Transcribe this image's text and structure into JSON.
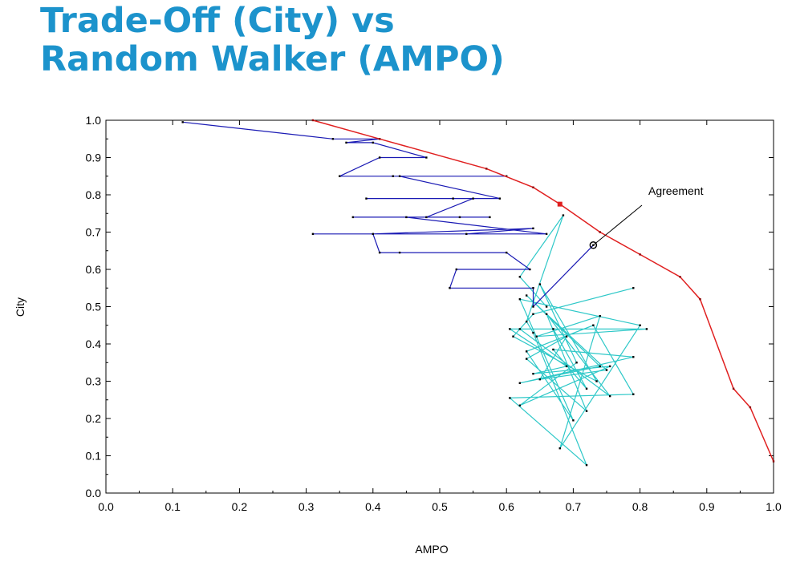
{
  "title": {
    "line1": "Trade-Off (City) vs",
    "line2": "Random Walker (AMPO)"
  },
  "chart_data": {
    "type": "line",
    "xlabel": "AMPO",
    "ylabel": "City",
    "xlim": [
      0,
      1
    ],
    "ylim": [
      0,
      1
    ],
    "xticks": [
      "0.0",
      "0.1",
      "0.2",
      "0.3",
      "0.4",
      "0.5",
      "0.6",
      "0.7",
      "0.8",
      "0.9",
      "1.0"
    ],
    "yticks": [
      "0.0",
      "0.1",
      "0.2",
      "0.3",
      "0.4",
      "0.5",
      "0.6",
      "0.7",
      "0.8",
      "0.9",
      "1.0"
    ],
    "grid": false,
    "annotation": {
      "text": "Agreement",
      "x": 0.73,
      "y": 0.665
    },
    "colors": {
      "frontier": "#e02020",
      "city_walk": "#1a1ab4",
      "ampo_walk": "#2ec8c8",
      "title": "#1c93cc"
    },
    "series": [
      {
        "role": "frontier",
        "x": [
          0.31,
          0.41,
          0.57,
          0.64,
          0.68,
          0.74,
          0.8,
          0.86,
          0.89,
          0.94,
          0.965,
          1.0
        ],
        "y": [
          1.0,
          0.95,
          0.87,
          0.82,
          0.775,
          0.7,
          0.64,
          0.58,
          0.52,
          0.28,
          0.23,
          0.085
        ]
      },
      {
        "role": "city_walk",
        "x": [
          0.115,
          0.34,
          0.41,
          0.36,
          0.4,
          0.48,
          0.41,
          0.35,
          0.43,
          0.6,
          0.44,
          0.59,
          0.39,
          0.52,
          0.55,
          0.48,
          0.37,
          0.575,
          0.53,
          0.45,
          0.66,
          0.31,
          0.54,
          0.64,
          0.4,
          0.41,
          0.44,
          0.6,
          0.635,
          0.525,
          0.515,
          0.64,
          0.64,
          0.73
        ],
        "y": [
          0.995,
          0.95,
          0.95,
          0.94,
          0.94,
          0.9,
          0.9,
          0.85,
          0.85,
          0.85,
          0.85,
          0.79,
          0.79,
          0.79,
          0.79,
          0.74,
          0.74,
          0.74,
          0.74,
          0.74,
          0.695,
          0.695,
          0.695,
          0.71,
          0.695,
          0.645,
          0.645,
          0.645,
          0.6,
          0.6,
          0.55,
          0.55,
          0.5,
          0.665
        ]
      },
      {
        "role": "ampo_walk",
        "x": [
          0.66,
          0.62,
          0.685,
          0.63,
          0.64,
          0.72,
          0.605,
          0.79,
          0.73,
          0.63,
          0.7,
          0.62,
          0.8,
          0.68,
          0.74,
          0.645,
          0.81,
          0.62,
          0.755,
          0.66,
          0.72,
          0.63,
          0.69,
          0.65,
          0.75,
          0.63,
          0.74,
          0.62,
          0.79,
          0.67,
          0.72,
          0.67,
          0.605,
          0.69,
          0.64,
          0.755,
          0.62,
          0.705,
          0.65,
          0.735,
          0.61,
          0.64,
          0.79
        ],
        "y": [
          0.5,
          0.58,
          0.745,
          0.46,
          0.43,
          0.075,
          0.255,
          0.265,
          0.45,
          0.38,
          0.195,
          0.52,
          0.45,
          0.12,
          0.475,
          0.42,
          0.44,
          0.44,
          0.26,
          0.48,
          0.22,
          0.36,
          0.42,
          0.305,
          0.33,
          0.53,
          0.34,
          0.295,
          0.365,
          0.385,
          0.28,
          0.44,
          0.44,
          0.34,
          0.32,
          0.34,
          0.235,
          0.35,
          0.56,
          0.3,
          0.42,
          0.48,
          0.55
        ]
      }
    ]
  }
}
